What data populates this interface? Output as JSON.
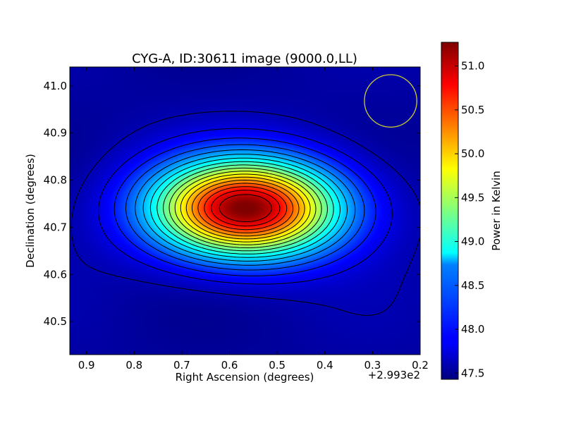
{
  "chart_data": {
    "type": "heatmap",
    "title": "CYG-A, ID:30611 image (9000.0,LL)",
    "xlabel": "Right Ascension (degrees)",
    "ylabel": "Declination (degrees)",
    "x_offset_label": "+2.993e2",
    "x_ticks": [
      {
        "value": 0.9,
        "label": "0.9"
      },
      {
        "value": 0.8,
        "label": "0.8"
      },
      {
        "value": 0.7,
        "label": "0.7"
      },
      {
        "value": 0.6,
        "label": "0.6"
      },
      {
        "value": 0.5,
        "label": "0.5"
      },
      {
        "value": 0.4,
        "label": "0.4"
      },
      {
        "value": 0.3,
        "label": "0.3"
      },
      {
        "value": 0.2,
        "label": "0.2"
      }
    ],
    "y_ticks": [
      {
        "value": 40.5,
        "label": "40.5"
      },
      {
        "value": 40.6,
        "label": "40.6"
      },
      {
        "value": 40.7,
        "label": "40.7"
      },
      {
        "value": 40.8,
        "label": "40.8"
      },
      {
        "value": 40.9,
        "label": "40.9"
      },
      {
        "value": 41.0,
        "label": "41.0"
      }
    ],
    "xlim": [
      0.935,
      0.2
    ],
    "ylim": [
      40.43,
      41.04
    ],
    "x_inverted": true,
    "colorbar": {
      "label": "Power in Kelvin",
      "range": [
        47.43,
        51.27
      ],
      "colormap": "jet",
      "ticks": [
        {
          "value": 47.5,
          "label": "47.5"
        },
        {
          "value": 48.0,
          "label": "48.0"
        },
        {
          "value": 48.5,
          "label": "48.5"
        },
        {
          "value": 49.0,
          "label": "49.0"
        },
        {
          "value": 49.5,
          "label": "49.5"
        },
        {
          "value": 50.0,
          "label": "50.0"
        },
        {
          "value": 50.5,
          "label": "50.5"
        },
        {
          "value": 51.0,
          "label": "51.0"
        }
      ]
    },
    "source": {
      "ra_center": 0.565,
      "dec_center": 40.74,
      "sigma_ra": 0.135,
      "sigma_dec": 0.071,
      "peak": 51.27,
      "background": 47.55
    },
    "contour_levels": [
      47.62,
      47.8,
      48.0,
      48.2,
      48.4,
      48.6,
      48.8,
      49.0,
      49.2,
      49.4,
      49.6,
      49.8,
      50.0,
      50.2,
      50.4,
      50.6,
      50.8,
      51.0
    ],
    "beam_circle": {
      "ra": 0.262,
      "dec": 40.968,
      "radius_deg": 0.055,
      "color": "#cccc33"
    }
  }
}
